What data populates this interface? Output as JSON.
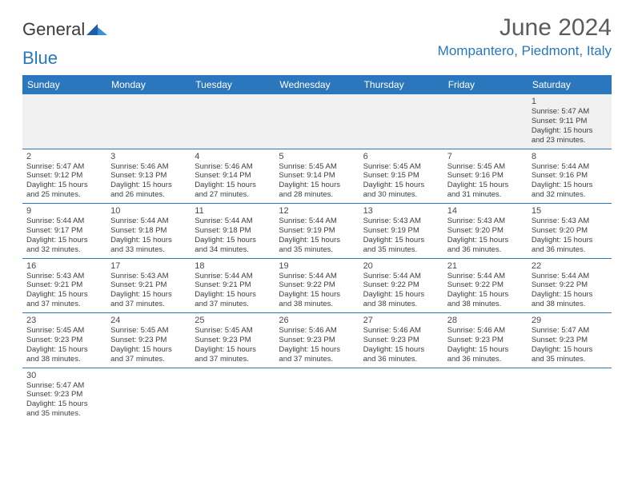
{
  "logo": {
    "text1": "General",
    "text2": "Blue"
  },
  "title": "June 2024",
  "location": "Mompantero, Piedmont, Italy",
  "header_bg": "#2b77bd",
  "dayHeaders": [
    "Sunday",
    "Monday",
    "Tuesday",
    "Wednesday",
    "Thursday",
    "Friday",
    "Saturday"
  ],
  "weeks": [
    [
      null,
      null,
      null,
      null,
      null,
      null,
      {
        "n": "1",
        "sr": "Sunrise: 5:47 AM",
        "ss": "Sunset: 9:11 PM",
        "d1": "Daylight: 15 hours",
        "d2": "and 23 minutes."
      }
    ],
    [
      {
        "n": "2",
        "sr": "Sunrise: 5:47 AM",
        "ss": "Sunset: 9:12 PM",
        "d1": "Daylight: 15 hours",
        "d2": "and 25 minutes."
      },
      {
        "n": "3",
        "sr": "Sunrise: 5:46 AM",
        "ss": "Sunset: 9:13 PM",
        "d1": "Daylight: 15 hours",
        "d2": "and 26 minutes."
      },
      {
        "n": "4",
        "sr": "Sunrise: 5:46 AM",
        "ss": "Sunset: 9:14 PM",
        "d1": "Daylight: 15 hours",
        "d2": "and 27 minutes."
      },
      {
        "n": "5",
        "sr": "Sunrise: 5:45 AM",
        "ss": "Sunset: 9:14 PM",
        "d1": "Daylight: 15 hours",
        "d2": "and 28 minutes."
      },
      {
        "n": "6",
        "sr": "Sunrise: 5:45 AM",
        "ss": "Sunset: 9:15 PM",
        "d1": "Daylight: 15 hours",
        "d2": "and 30 minutes."
      },
      {
        "n": "7",
        "sr": "Sunrise: 5:45 AM",
        "ss": "Sunset: 9:16 PM",
        "d1": "Daylight: 15 hours",
        "d2": "and 31 minutes."
      },
      {
        "n": "8",
        "sr": "Sunrise: 5:44 AM",
        "ss": "Sunset: 9:16 PM",
        "d1": "Daylight: 15 hours",
        "d2": "and 32 minutes."
      }
    ],
    [
      {
        "n": "9",
        "sr": "Sunrise: 5:44 AM",
        "ss": "Sunset: 9:17 PM",
        "d1": "Daylight: 15 hours",
        "d2": "and 32 minutes."
      },
      {
        "n": "10",
        "sr": "Sunrise: 5:44 AM",
        "ss": "Sunset: 9:18 PM",
        "d1": "Daylight: 15 hours",
        "d2": "and 33 minutes."
      },
      {
        "n": "11",
        "sr": "Sunrise: 5:44 AM",
        "ss": "Sunset: 9:18 PM",
        "d1": "Daylight: 15 hours",
        "d2": "and 34 minutes."
      },
      {
        "n": "12",
        "sr": "Sunrise: 5:44 AM",
        "ss": "Sunset: 9:19 PM",
        "d1": "Daylight: 15 hours",
        "d2": "and 35 minutes."
      },
      {
        "n": "13",
        "sr": "Sunrise: 5:43 AM",
        "ss": "Sunset: 9:19 PM",
        "d1": "Daylight: 15 hours",
        "d2": "and 35 minutes."
      },
      {
        "n": "14",
        "sr": "Sunrise: 5:43 AM",
        "ss": "Sunset: 9:20 PM",
        "d1": "Daylight: 15 hours",
        "d2": "and 36 minutes."
      },
      {
        "n": "15",
        "sr": "Sunrise: 5:43 AM",
        "ss": "Sunset: 9:20 PM",
        "d1": "Daylight: 15 hours",
        "d2": "and 36 minutes."
      }
    ],
    [
      {
        "n": "16",
        "sr": "Sunrise: 5:43 AM",
        "ss": "Sunset: 9:21 PM",
        "d1": "Daylight: 15 hours",
        "d2": "and 37 minutes."
      },
      {
        "n": "17",
        "sr": "Sunrise: 5:43 AM",
        "ss": "Sunset: 9:21 PM",
        "d1": "Daylight: 15 hours",
        "d2": "and 37 minutes."
      },
      {
        "n": "18",
        "sr": "Sunrise: 5:44 AM",
        "ss": "Sunset: 9:21 PM",
        "d1": "Daylight: 15 hours",
        "d2": "and 37 minutes."
      },
      {
        "n": "19",
        "sr": "Sunrise: 5:44 AM",
        "ss": "Sunset: 9:22 PM",
        "d1": "Daylight: 15 hours",
        "d2": "and 38 minutes."
      },
      {
        "n": "20",
        "sr": "Sunrise: 5:44 AM",
        "ss": "Sunset: 9:22 PM",
        "d1": "Daylight: 15 hours",
        "d2": "and 38 minutes."
      },
      {
        "n": "21",
        "sr": "Sunrise: 5:44 AM",
        "ss": "Sunset: 9:22 PM",
        "d1": "Daylight: 15 hours",
        "d2": "and 38 minutes."
      },
      {
        "n": "22",
        "sr": "Sunrise: 5:44 AM",
        "ss": "Sunset: 9:22 PM",
        "d1": "Daylight: 15 hours",
        "d2": "and 38 minutes."
      }
    ],
    [
      {
        "n": "23",
        "sr": "Sunrise: 5:45 AM",
        "ss": "Sunset: 9:23 PM",
        "d1": "Daylight: 15 hours",
        "d2": "and 38 minutes."
      },
      {
        "n": "24",
        "sr": "Sunrise: 5:45 AM",
        "ss": "Sunset: 9:23 PM",
        "d1": "Daylight: 15 hours",
        "d2": "and 37 minutes."
      },
      {
        "n": "25",
        "sr": "Sunrise: 5:45 AM",
        "ss": "Sunset: 9:23 PM",
        "d1": "Daylight: 15 hours",
        "d2": "and 37 minutes."
      },
      {
        "n": "26",
        "sr": "Sunrise: 5:46 AM",
        "ss": "Sunset: 9:23 PM",
        "d1": "Daylight: 15 hours",
        "d2": "and 37 minutes."
      },
      {
        "n": "27",
        "sr": "Sunrise: 5:46 AM",
        "ss": "Sunset: 9:23 PM",
        "d1": "Daylight: 15 hours",
        "d2": "and 36 minutes."
      },
      {
        "n": "28",
        "sr": "Sunrise: 5:46 AM",
        "ss": "Sunset: 9:23 PM",
        "d1": "Daylight: 15 hours",
        "d2": "and 36 minutes."
      },
      {
        "n": "29",
        "sr": "Sunrise: 5:47 AM",
        "ss": "Sunset: 9:23 PM",
        "d1": "Daylight: 15 hours",
        "d2": "and 35 minutes."
      }
    ],
    [
      {
        "n": "30",
        "sr": "Sunrise: 5:47 AM",
        "ss": "Sunset: 9:23 PM",
        "d1": "Daylight: 15 hours",
        "d2": "and 35 minutes."
      },
      null,
      null,
      null,
      null,
      null,
      null
    ]
  ]
}
